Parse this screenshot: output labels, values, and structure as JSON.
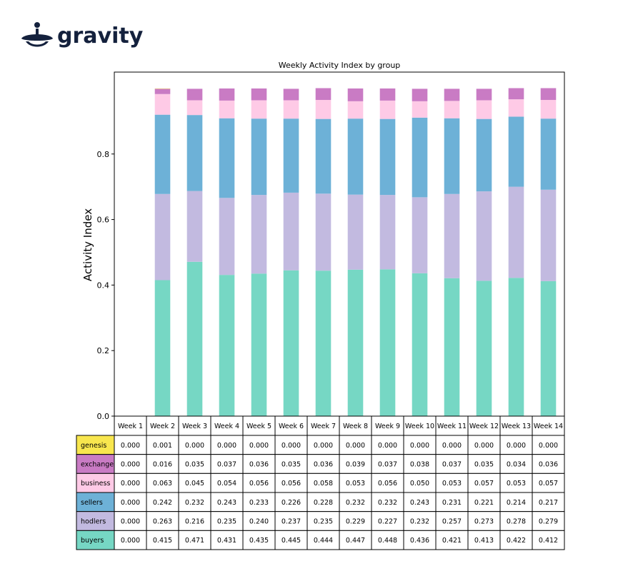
{
  "brand": {
    "name": "gravity",
    "color": "#14213d"
  },
  "chart_data": {
    "type": "bar",
    "stacked": true,
    "title": "Weekly Activity Index by group",
    "xlabel": "",
    "ylabel": "Activity Index",
    "ylim": [
      0,
      1.05
    ],
    "yticks": [
      "0.0",
      "0.2",
      "0.4",
      "0.6",
      "0.8"
    ],
    "categories": [
      "Week 1",
      "Week 2",
      "Week 3",
      "Week 4",
      "Week 5",
      "Week 6",
      "Week 7",
      "Week 8",
      "Week 9",
      "Week 10",
      "Week 11",
      "Week 12",
      "Week 13",
      "Week 14"
    ],
    "series": [
      {
        "name": "buyers",
        "color": "#76d7c4",
        "values": [
          0.0,
          0.415,
          0.471,
          0.431,
          0.435,
          0.445,
          0.444,
          0.447,
          0.448,
          0.436,
          0.421,
          0.413,
          0.422,
          0.412
        ]
      },
      {
        "name": "hodlers",
        "color": "#c2bae0",
        "values": [
          0.0,
          0.263,
          0.216,
          0.235,
          0.24,
          0.237,
          0.235,
          0.229,
          0.227,
          0.232,
          0.257,
          0.273,
          0.278,
          0.279
        ]
      },
      {
        "name": "sellers",
        "color": "#6db1d7",
        "values": [
          0.0,
          0.242,
          0.232,
          0.243,
          0.233,
          0.226,
          0.228,
          0.232,
          0.232,
          0.243,
          0.231,
          0.221,
          0.214,
          0.217
        ]
      },
      {
        "name": "business",
        "color": "#fecae6",
        "values": [
          0.0,
          0.063,
          0.045,
          0.054,
          0.056,
          0.056,
          0.058,
          0.053,
          0.056,
          0.05,
          0.053,
          0.057,
          0.053,
          0.057
        ]
      },
      {
        "name": "exchange",
        "color": "#c97bc4",
        "values": [
          0.0,
          0.016,
          0.035,
          0.037,
          0.036,
          0.035,
          0.036,
          0.039,
          0.037,
          0.038,
          0.037,
          0.035,
          0.034,
          0.036
        ]
      },
      {
        "name": "genesis",
        "color": "#f8e64e",
        "values": [
          0.0,
          0.001,
          0.0,
          0.0,
          0.0,
          0.0,
          0.0,
          0.0,
          0.0,
          0.0,
          0.0,
          0.0,
          0.0,
          0.0
        ]
      }
    ],
    "table_rows": [
      {
        "name": "genesis",
        "color": "#f8e64e",
        "cells": [
          "0.000",
          "0.001",
          "0.000",
          "0.000",
          "0.000",
          "0.000",
          "0.000",
          "0.000",
          "0.000",
          "0.000",
          "0.000",
          "0.000",
          "0.000",
          "0.000"
        ]
      },
      {
        "name": "exchange",
        "color": "#c97bc4",
        "cells": [
          "0.000",
          "0.016",
          "0.035",
          "0.037",
          "0.036",
          "0.035",
          "0.036",
          "0.039",
          "0.037",
          "0.038",
          "0.037",
          "0.035",
          "0.034",
          "0.036"
        ]
      },
      {
        "name": "business",
        "color": "#fecae6",
        "cells": [
          "0.000",
          "0.063",
          "0.045",
          "0.054",
          "0.056",
          "0.056",
          "0.058",
          "0.053",
          "0.056",
          "0.050",
          "0.053",
          "0.057",
          "0.053",
          "0.057"
        ]
      },
      {
        "name": "sellers",
        "color": "#6db1d7",
        "cells": [
          "0.000",
          "0.242",
          "0.232",
          "0.243",
          "0.233",
          "0.226",
          "0.228",
          "0.232",
          "0.232",
          "0.243",
          "0.231",
          "0.221",
          "0.214",
          "0.217"
        ]
      },
      {
        "name": "hodlers",
        "color": "#c2bae0",
        "cells": [
          "0.000",
          "0.263",
          "0.216",
          "0.235",
          "0.240",
          "0.237",
          "0.235",
          "0.229",
          "0.227",
          "0.232",
          "0.257",
          "0.273",
          "0.278",
          "0.279"
        ]
      },
      {
        "name": "buyers",
        "color": "#76d7c4",
        "cells": [
          "0.000",
          "0.415",
          "0.471",
          "0.431",
          "0.435",
          "0.445",
          "0.444",
          "0.447",
          "0.448",
          "0.436",
          "0.421",
          "0.413",
          "0.422",
          "0.412"
        ]
      }
    ],
    "grid": false,
    "legend": "table-below"
  }
}
